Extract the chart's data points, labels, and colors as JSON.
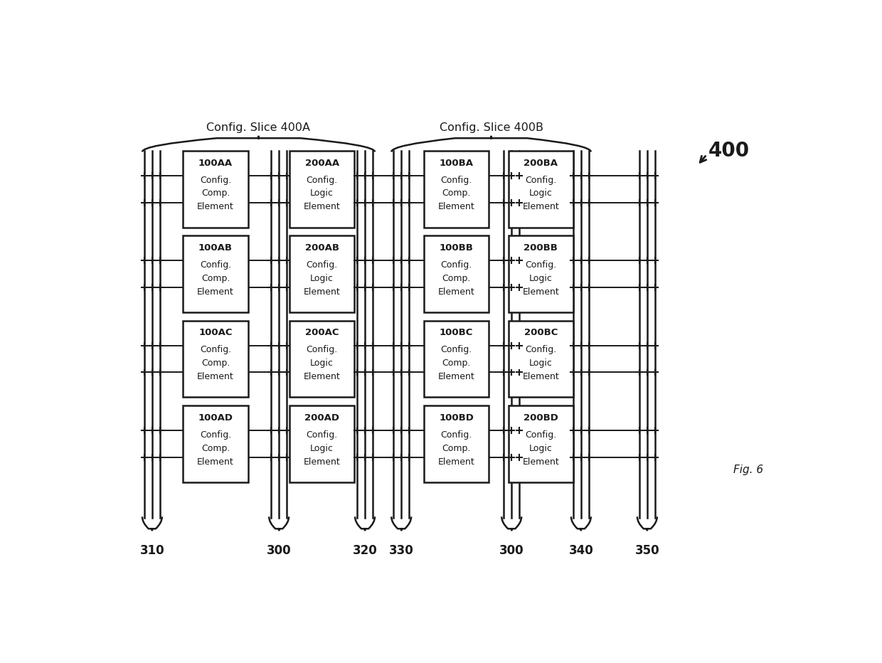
{
  "bg_color": "#ffffff",
  "line_color": "#1a1a1a",
  "fig_width": 12.4,
  "fig_height": 9.32,
  "title": "Fig. 6",
  "ref_label": "400",
  "slice_A_label": "Config. Slice 400A",
  "slice_B_label": "Config. Slice 400B",
  "blocks": [
    {
      "id": "100AA",
      "line1": "100AA",
      "line2": "Config.\nComp.\nElement",
      "col": 0,
      "row": 0
    },
    {
      "id": "200AA",
      "line1": "200AA",
      "line2": "Config.\nLogic\nElement",
      "col": 1,
      "row": 0
    },
    {
      "id": "100AB",
      "line1": "100AB",
      "line2": "Config.\nComp.\nElement",
      "col": 0,
      "row": 1
    },
    {
      "id": "200AB",
      "line1": "200AB",
      "line2": "Config.\nLogic\nElement",
      "col": 1,
      "row": 1
    },
    {
      "id": "100AC",
      "line1": "100AC",
      "line2": "Config.\nComp.\nElement",
      "col": 0,
      "row": 2
    },
    {
      "id": "200AC",
      "line1": "200AC",
      "line2": "Config.\nLogic\nElement",
      "col": 1,
      "row": 2
    },
    {
      "id": "100AD",
      "line1": "100AD",
      "line2": "Config.\nComp.\nElement",
      "col": 0,
      "row": 3
    },
    {
      "id": "200AD",
      "line1": "200AD",
      "line2": "Config.\nLogic\nElement",
      "col": 1,
      "row": 3
    },
    {
      "id": "100BA",
      "line1": "100BA",
      "line2": "Config.\nComp.\nElement",
      "col": 2,
      "row": 0
    },
    {
      "id": "200BA",
      "line1": "200BA",
      "line2": "Config.\nLogic\nElement",
      "col": 3,
      "row": 0
    },
    {
      "id": "100BB",
      "line1": "100BB",
      "line2": "Config.\nComp.\nElement",
      "col": 2,
      "row": 1
    },
    {
      "id": "200BB",
      "line1": "200BB",
      "line2": "Config.\nLogic\nElement",
      "col": 3,
      "row": 1
    },
    {
      "id": "100BC",
      "line1": "100BC",
      "line2": "Config.\nComp.\nElement",
      "col": 2,
      "row": 2
    },
    {
      "id": "200BC",
      "line1": "200BC",
      "line2": "Config.\nLogic\nElement",
      "col": 3,
      "row": 2
    },
    {
      "id": "100BD",
      "line1": "100BD",
      "line2": "Config.\nComp.\nElement",
      "col": 2,
      "row": 3
    },
    {
      "id": "200BD",
      "line1": "200BD",
      "line2": "Config.\nLogic\nElement",
      "col": 3,
      "row": 3
    }
  ]
}
